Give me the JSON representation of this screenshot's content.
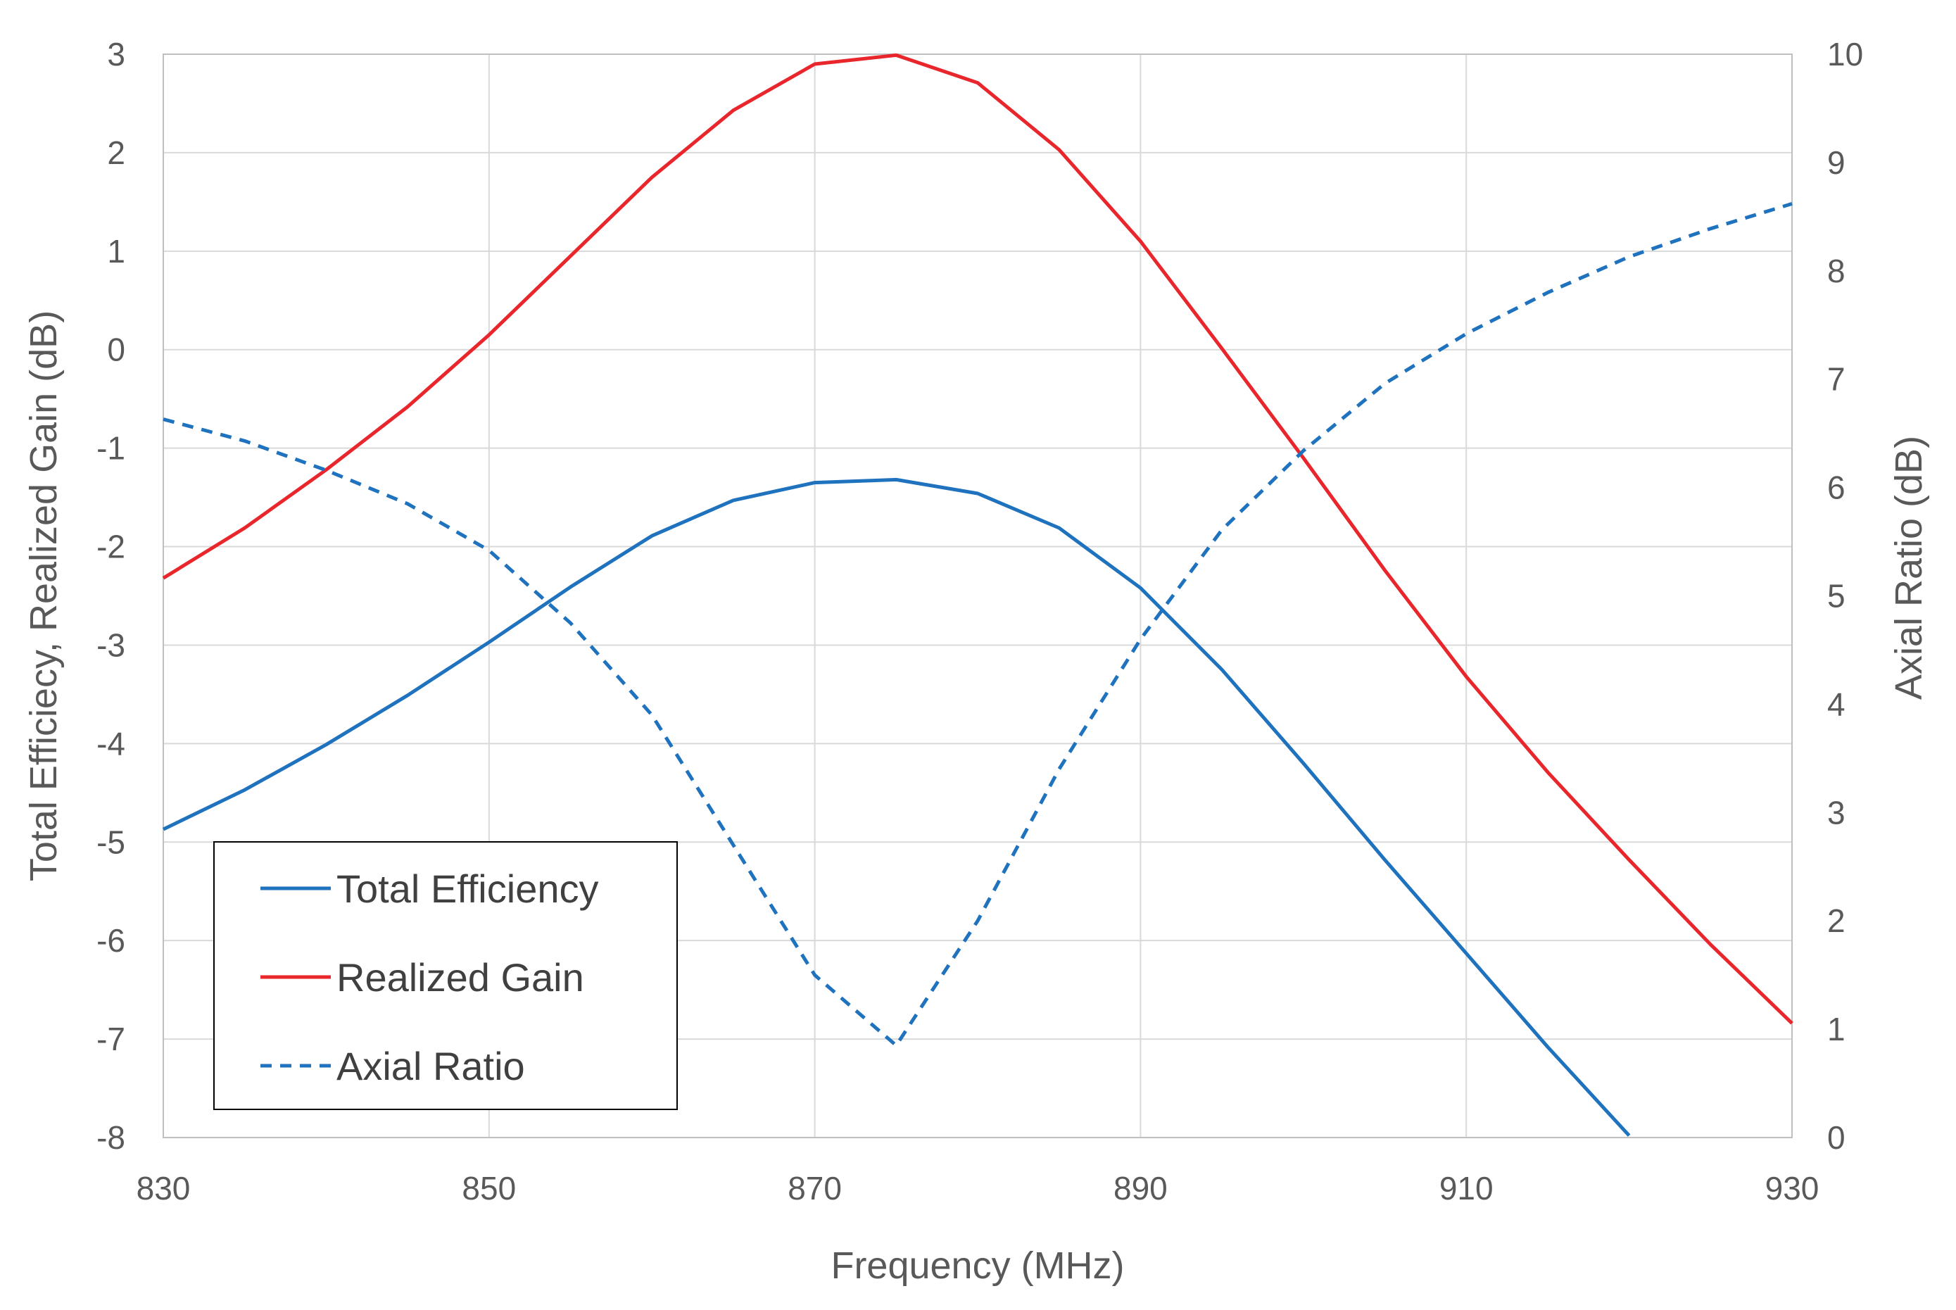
{
  "chart_data": {
    "type": "line",
    "title": "",
    "xlabel": "Frequency (MHz)",
    "ylabel": "Total Efficiecy, Realized Gain (dB)",
    "y2label": "Axial Ratio (dB)",
    "xlim": [
      830,
      930
    ],
    "ylim": [
      -8,
      3
    ],
    "y2lim": [
      0,
      10
    ],
    "x_ticks": [
      "830",
      "850",
      "870",
      "890",
      "910",
      "930"
    ],
    "y_ticks": [
      "3",
      "2",
      "1",
      "0",
      "-1",
      "-2",
      "-3",
      "-4",
      "-5",
      "-6",
      "-7",
      "-8"
    ],
    "y2_ticks": [
      "10",
      "9",
      "8",
      "7",
      "6",
      "5",
      "4",
      "3",
      "2",
      "1",
      "0"
    ],
    "grid": true,
    "legend_position": "bottom-left",
    "x": [
      830,
      835,
      840,
      845,
      850,
      855,
      860,
      865,
      870,
      875,
      880,
      885,
      890,
      895,
      900,
      905,
      910,
      915,
      920,
      925,
      930
    ],
    "series": [
      {
        "name": "Total Efficiency",
        "axis": "left",
        "color": "#1f72bd",
        "style": "solid",
        "values": [
          -4.87,
          -4.47,
          -4.01,
          -3.51,
          -2.97,
          -2.41,
          -1.89,
          -1.53,
          -1.35,
          -1.32,
          -1.46,
          -1.81,
          -2.42,
          -3.25,
          -4.2,
          -5.18,
          -6.13,
          -7.08,
          -7.98,
          null,
          null
        ]
      },
      {
        "name": "Realized Gain",
        "axis": "left",
        "color": "#e8262b",
        "style": "solid",
        "values": [
          -2.32,
          -1.81,
          -1.22,
          -0.58,
          0.15,
          0.95,
          1.75,
          2.43,
          2.9,
          2.99,
          2.71,
          2.03,
          1.1,
          0.01,
          -1.1,
          -2.24,
          -3.32,
          -4.29,
          -5.18,
          -6.04,
          -6.84
        ]
      },
      {
        "name": "Axial Ratio",
        "axis": "right",
        "color": "#1f72bd",
        "style": "dashed",
        "values": [
          6.63,
          6.43,
          6.16,
          5.85,
          5.42,
          4.75,
          3.9,
          2.7,
          1.5,
          0.85,
          2.0,
          3.4,
          4.6,
          5.61,
          6.34,
          6.96,
          7.42,
          7.8,
          8.13,
          8.39,
          8.62
        ]
      }
    ]
  }
}
